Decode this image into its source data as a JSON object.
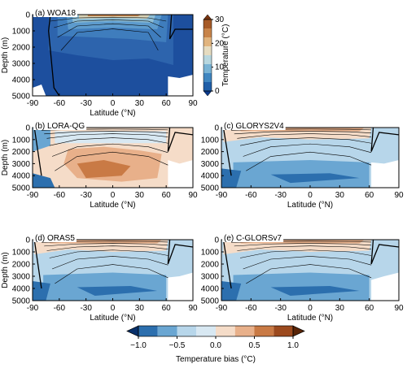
{
  "chart_data": [
    {
      "type": "contour",
      "title": "(a) WOA18",
      "xlabel": "Latitude (°N)",
      "ylabel": "Depth (m)",
      "xlim": [
        -90,
        90
      ],
      "xticks": [
        -90,
        -60,
        -30,
        0,
        30,
        60,
        90
      ],
      "ylim": [
        5000,
        0
      ],
      "yticks": [
        0,
        1000,
        2000,
        3000,
        4000,
        5000
      ],
      "colorbar": {
        "label": "Temperature (°C)",
        "lim": [
          0,
          30
        ],
        "ticks": [
          0,
          10,
          20,
          30
        ],
        "colors": [
          "#0b3a8c",
          "#1f5ea8",
          "#3f86c0",
          "#79b3d4",
          "#b7d7df",
          "#e6dcc0",
          "#e1b47e",
          "#c8844a",
          "#a65a27",
          "#7a3510"
        ]
      }
    },
    {
      "type": "contour",
      "title": "(b) LORA-QG",
      "xlabel": "Latitude (°N)",
      "ylabel": "Depth (m)",
      "xlim": [
        -90,
        90
      ],
      "xticks": [
        -90,
        -60,
        -30,
        0,
        30,
        60,
        90
      ],
      "ylim": [
        5000,
        0
      ],
      "yticks": [
        0,
        1000,
        2000,
        3000,
        4000,
        5000
      ]
    },
    {
      "type": "contour",
      "title": "(c) GLORYS2V4",
      "xlabel": "Latitude (°N)",
      "xlim": [
        -90,
        90
      ],
      "xticks": [
        -90,
        -60,
        -30,
        0,
        30,
        60,
        90
      ],
      "ylim": [
        5000,
        0
      ],
      "yticks": [
        0,
        1000,
        2000,
        3000,
        4000,
        5000
      ]
    },
    {
      "type": "contour",
      "title": "(d) ORAS5",
      "xlabel": "Latitude (°N)",
      "ylabel": "Depth (m)",
      "xlim": [
        -90,
        90
      ],
      "xticks": [
        -90,
        -60,
        -30,
        0,
        30,
        60,
        90
      ],
      "ylim": [
        5000,
        0
      ],
      "yticks": [
        0,
        1000,
        2000,
        3000,
        4000,
        5000
      ]
    },
    {
      "type": "contour",
      "title": "(e) C-GLORSv7",
      "xlabel": "Latitude (°N)",
      "xlim": [
        -90,
        90
      ],
      "xticks": [
        -90,
        -60,
        -30,
        0,
        30,
        60,
        90
      ],
      "ylim": [
        5000,
        0
      ],
      "yticks": [
        0,
        1000,
        2000,
        3000,
        4000,
        5000
      ]
    },
    {
      "type": "colorbar",
      "label": "Temperature bias (°C)",
      "lim": [
        -1,
        1
      ],
      "ticks": [
        {
          "value": -1,
          "label": "−1.0"
        },
        {
          "value": -0.5,
          "label": "−0.5"
        },
        {
          "value": 0,
          "label": "0.0"
        },
        {
          "value": 0.5,
          "label": "0.5"
        },
        {
          "value": 1,
          "label": "1.0"
        }
      ],
      "colors": [
        "#08306b",
        "#2c6fae",
        "#6aa6d2",
        "#b7d6ea",
        "#d8e8f2",
        "#f5dcc8",
        "#e8b08a",
        "#c97a45",
        "#9c4a1e",
        "#5a2508"
      ]
    }
  ]
}
